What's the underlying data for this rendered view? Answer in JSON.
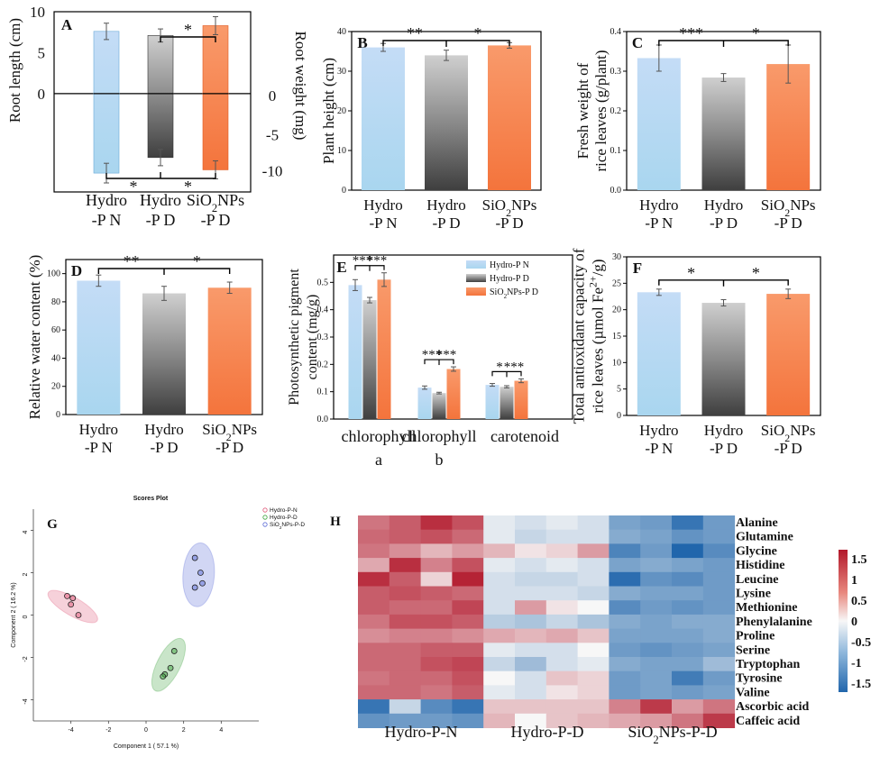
{
  "figure_title": "Multi-panel figure: rice growth, pigments, antioxidant capacity, PCA scores plot and metabolite heatmap",
  "colors": {
    "hydro_pn": "#b9d8f4",
    "hydro_pd": "#7a7a7a",
    "sio2_pd": "#f47f48",
    "pca_pn": "#e05a7a",
    "pca_pd": "#3ea33e",
    "pca_sio2": "#5b6bd6",
    "heat_low": "#2166ac",
    "heat_mid": "#f7f7f7",
    "heat_high": "#b2182b"
  },
  "chart_data": [
    {
      "panel": "A",
      "type": "bar",
      "categories": [
        "Hydro\n-P N",
        "Hydro\n-P D",
        "SiO2NPs\n-P D"
      ],
      "series": [
        {
          "name": "Root length (cm)",
          "values": [
            7.6,
            7.1,
            8.3
          ],
          "errors": [
            1.0,
            0.8,
            1.1
          ]
        },
        {
          "name": "Root weight (mg)",
          "values": [
            -9.7,
            -7.8,
            -9.3
          ],
          "errors": [
            1.2,
            1.0,
            1.1
          ]
        }
      ],
      "ylabel": "Root length (cm)",
      "y2label": "Root weight (mg)",
      "ylim": [
        -12,
        10
      ],
      "left_ticks": [
        "10",
        "5",
        "0"
      ],
      "right_ticks": [
        "0",
        "-5",
        "-10"
      ],
      "sig_top": [
        {
          "label": "*"
        }
      ],
      "sig_bottom": [
        {
          "label": "*"
        },
        {
          "label": "*"
        }
      ]
    },
    {
      "panel": "B",
      "type": "bar",
      "categories": [
        "Hydro\n-P N",
        "Hydro\n-P D",
        "SiO2NPs\n-P D"
      ],
      "values": [
        36.0,
        34.0,
        36.5
      ],
      "errors": [
        1.0,
        1.3,
        0.7
      ],
      "ylabel": "Plant height (cm)",
      "ylim": [
        0,
        40
      ],
      "ticks": [
        "0",
        "10",
        "20",
        "30",
        "40"
      ],
      "sig": [
        {
          "label": "**"
        },
        {
          "label": "*"
        }
      ]
    },
    {
      "panel": "C",
      "type": "bar",
      "categories": [
        "Hydro\n-P N",
        "Hydro\n-P D",
        "SiO2NPs\n-P D"
      ],
      "values": [
        0.333,
        0.284,
        0.318
      ],
      "errors": [
        0.033,
        0.01,
        0.048
      ],
      "ylabel": "Fresh weight of\nrice leaves (g/plant)",
      "ylim": [
        0,
        0.4
      ],
      "ticks": [
        "0.0",
        "0.1",
        "0.2",
        "0.3",
        "0.4"
      ],
      "sig": [
        {
          "label": "***"
        },
        {
          "label": "*"
        }
      ]
    },
    {
      "panel": "D",
      "type": "bar",
      "categories": [
        "Hydro\n-P N",
        "Hydro\n-P D",
        "SiO2NPs\n-P D"
      ],
      "values": [
        95,
        86,
        90
      ],
      "errors": [
        4,
        5,
        4
      ],
      "ylabel": "Relative water content (%)",
      "ylim": [
        0,
        110
      ],
      "ticks": [
        "0",
        "20",
        "40",
        "60",
        "80",
        "100"
      ],
      "sig": [
        {
          "label": "**"
        },
        {
          "label": "*"
        }
      ]
    },
    {
      "panel": "E",
      "type": "bar",
      "categories": [
        "chlorophyll\na",
        "chlorophyll\nb",
        "carotenoid"
      ],
      "series": [
        {
          "name": "Hydro-P N",
          "values": [
            0.49,
            0.115,
            0.125
          ],
          "errors": [
            0.02,
            0.006,
            0.005
          ]
        },
        {
          "name": "Hydro-P D",
          "values": [
            0.435,
            0.095,
            0.118
          ],
          "errors": [
            0.01,
            0.003,
            0.004
          ]
        },
        {
          "name": "SiO2NPs-P D",
          "values": [
            0.51,
            0.183,
            0.14
          ],
          "errors": [
            0.025,
            0.008,
            0.007
          ]
        }
      ],
      "ylabel": "Photosynthetic pigment\ncontent (mg/g)",
      "ylim": [
        0,
        0.6
      ],
      "ticks": [
        "0.0",
        "0.1",
        "0.2",
        "0.3",
        "0.4",
        "0.5"
      ],
      "sig_groups": [
        [
          {
            "label": "***"
          },
          {
            "label": "***"
          }
        ],
        [
          {
            "label": "***"
          },
          {
            "label": "***"
          }
        ],
        [
          {
            "label": "*"
          },
          {
            "label": "***"
          }
        ]
      ],
      "legend": [
        "Hydro-P N",
        "Hydro-P D",
        "SiO2NPs-P D"
      ]
    },
    {
      "panel": "F",
      "type": "bar",
      "categories": [
        "Hydro\n-P N",
        "Hydro\n-P D",
        "SiO2NPs\n-P D"
      ],
      "values": [
        23.3,
        21.3,
        23.0
      ],
      "errors": [
        0.6,
        0.6,
        0.9
      ],
      "ylabel": "Total antioxidant capacity of\nrice leaves (µmol Fe2+/g)",
      "ylim": [
        0,
        30
      ],
      "ticks": [
        "0",
        "5",
        "10",
        "15",
        "20",
        "25",
        "30"
      ],
      "sig": [
        {
          "label": "*"
        },
        {
          "label": "*"
        }
      ]
    },
    {
      "panel": "G",
      "type": "scatter",
      "title": "Scores Plot",
      "xlabel": "Component 1 ( 57.1 %)",
      "ylabel": "Component 2 ( 16.2 %)",
      "xlim": [
        -6,
        6
      ],
      "ylim": [
        -5,
        5
      ],
      "xticks": [
        "-4",
        "-2",
        "0",
        "2",
        "4"
      ],
      "yticks": [
        "4",
        "2",
        "0",
        "-2",
        "-4"
      ],
      "legend": [
        "Hydro-P-N",
        "Hydro-P-D",
        "SiO2NPs-P-D"
      ],
      "series": [
        {
          "name": "Hydro-P-N",
          "x": [
            -4.2,
            -3.9,
            -4.0,
            -3.6
          ],
          "y": [
            0.9,
            0.8,
            0.5,
            0.0
          ]
        },
        {
          "name": "Hydro-P-D",
          "x": [
            1.5,
            1.3,
            1.0,
            0.9
          ],
          "y": [
            -1.7,
            -2.5,
            -2.8,
            -2.9
          ]
        },
        {
          "name": "SiO2NPs-P-D",
          "x": [
            2.6,
            2.9,
            3.0,
            2.6
          ],
          "y": [
            2.7,
            2.0,
            1.5,
            1.3
          ]
        }
      ]
    },
    {
      "panel": "H",
      "type": "heatmap",
      "rows": [
        "Alanine",
        "Glutamine",
        "Glycine",
        "Histidine",
        "Leucine",
        "Lysine",
        "Methionine",
        "Phenylalanine",
        "Proline",
        "Serine",
        "Tryptophan",
        "Tyrosine",
        "Valine",
        "Ascorbic acid",
        "Caffeic acid"
      ],
      "groups": [
        "Hydro-P-N",
        "Hydro-P-D",
        "SiO2NPs-P-D"
      ],
      "colorbar_ticks": [
        "1.5",
        "1",
        "0.5",
        "0",
        "-0.5",
        "-1",
        "-1.5"
      ],
      "values": [
        [
          0.9,
          1.1,
          1.5,
          1.2,
          -0.1,
          -0.2,
          -0.1,
          -0.2,
          -0.9,
          -1.0,
          -1.5,
          -1.0
        ],
        [
          1.0,
          1.1,
          1.2,
          1.0,
          -0.1,
          -0.3,
          -0.2,
          -0.2,
          -0.8,
          -0.9,
          -1.1,
          -1.0
        ],
        [
          0.9,
          0.7,
          0.4,
          0.6,
          0.4,
          0.1,
          0.2,
          0.6,
          -1.3,
          -1.0,
          -1.7,
          -1.2
        ],
        [
          0.5,
          1.5,
          0.8,
          1.2,
          -0.1,
          -0.2,
          -0.1,
          -0.2,
          -0.9,
          -0.8,
          -0.9,
          -1.0
        ],
        [
          1.5,
          1.1,
          0.2,
          1.6,
          -0.2,
          -0.3,
          -0.3,
          -0.2,
          -1.6,
          -1.1,
          -1.2,
          -1.0
        ],
        [
          1.1,
          1.2,
          1.1,
          1.0,
          -0.2,
          -0.2,
          -0.2,
          -0.3,
          -0.8,
          -0.9,
          -0.9,
          -1.0
        ],
        [
          1.1,
          1.0,
          1.0,
          1.3,
          -0.2,
          0.6,
          0.1,
          0.0,
          -1.2,
          -1.0,
          -1.1,
          -1.0
        ],
        [
          0.9,
          1.2,
          1.2,
          1.1,
          -0.4,
          -0.5,
          -0.3,
          -0.5,
          -0.8,
          -0.9,
          -0.8,
          -0.8
        ],
        [
          0.7,
          0.8,
          0.8,
          0.7,
          0.5,
          0.4,
          0.5,
          0.3,
          -0.9,
          -0.9,
          -0.9,
          -0.8
        ],
        [
          1.0,
          1.0,
          1.1,
          1.1,
          -0.1,
          -0.2,
          -0.2,
          0.0,
          -1.0,
          -1.1,
          -1.0,
          -0.9
        ],
        [
          1.0,
          1.0,
          1.2,
          1.3,
          -0.3,
          -0.6,
          -0.2,
          -0.1,
          -0.8,
          -0.9,
          -0.9,
          -0.6
        ],
        [
          0.9,
          1.0,
          1.0,
          1.2,
          0.0,
          -0.2,
          0.3,
          0.2,
          -1.0,
          -0.9,
          -1.4,
          -1.0
        ],
        [
          1.0,
          1.0,
          0.9,
          1.1,
          -0.1,
          -0.2,
          0.1,
          0.2,
          -1.0,
          -0.9,
          -1.0,
          -0.9
        ],
        [
          -1.5,
          -0.3,
          -1.2,
          -1.5,
          0.3,
          0.3,
          0.3,
          0.3,
          0.8,
          1.4,
          0.6,
          0.9
        ],
        [
          -1.1,
          -1.0,
          -1.0,
          -1.1,
          0.4,
          0.0,
          0.3,
          0.4,
          0.5,
          0.6,
          0.9,
          1.4
        ]
      ]
    }
  ]
}
